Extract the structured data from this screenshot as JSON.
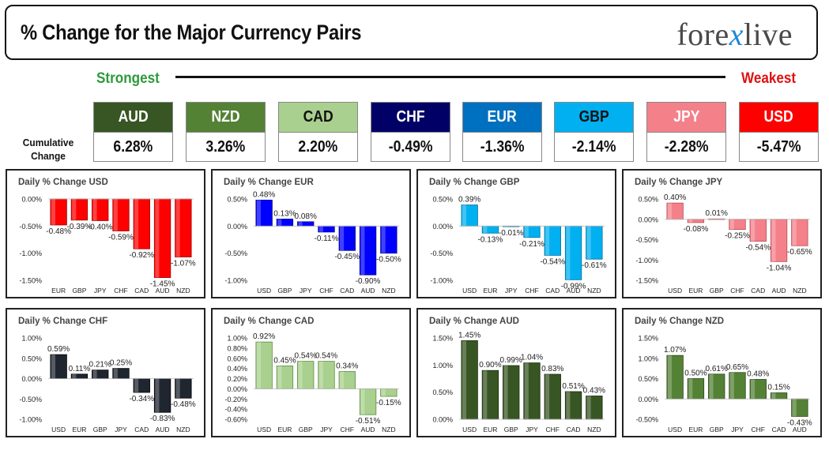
{
  "header": {
    "title": "% Change for the Major Currency Pairs",
    "logo_left": "fore",
    "logo_x": "x",
    "logo_right": "live"
  },
  "scale": {
    "strongest_label": "Strongest",
    "weakest_label": "Weakest"
  },
  "cumulative": {
    "label_line1": "Cumulative",
    "label_line2": "Change",
    "items": [
      {
        "currency": "AUD",
        "value": "6.28%",
        "color": "#375623",
        "text_color": "#ffffff"
      },
      {
        "currency": "NZD",
        "value": "3.26%",
        "color": "#548235",
        "text_color": "#ffffff"
      },
      {
        "currency": "CAD",
        "value": "2.20%",
        "color": "#a9d08e",
        "text_color": "#111111"
      },
      {
        "currency": "CHF",
        "value": "-0.49%",
        "color": "#000066",
        "text_color": "#ffffff"
      },
      {
        "currency": "EUR",
        "value": "-1.36%",
        "color": "#0070c0",
        "text_color": "#ffffff"
      },
      {
        "currency": "GBP",
        "value": "-2.14%",
        "color": "#00b0f0",
        "text_color": "#111111"
      },
      {
        "currency": "JPY",
        "value": "-2.28%",
        "color": "#f4808a",
        "text_color": "#ffffff"
      },
      {
        "currency": "USD",
        "value": "-5.47%",
        "color": "#ff0000",
        "text_color": "#ffffff"
      }
    ]
  },
  "chart_data": [
    {
      "type": "bar",
      "title": "Daily % Change USD",
      "color": "#ff0000",
      "dark": "#a00000",
      "categories": [
        "EUR",
        "GBP",
        "JPY",
        "CHF",
        "CAD",
        "AUD",
        "NZD"
      ],
      "values": [
        -0.48,
        -0.39,
        -0.4,
        -0.59,
        -0.92,
        -1.45,
        -1.07
      ],
      "labels": [
        "-0.48%",
        "-0.39%",
        "-0.40%",
        "-0.59%",
        "-0.92%",
        "-1.45%",
        "-1.07%"
      ],
      "ylim": [
        -1.5,
        0.0
      ],
      "yticks": [
        0.0,
        -0.5,
        -1.0,
        -1.5
      ],
      "ytick_labels": [
        "0.00%",
        "-0.50%",
        "-1.00%",
        "-1.50%"
      ]
    },
    {
      "type": "bar",
      "title": "Daily % Change EUR",
      "color": "#0000ff",
      "dark": "#00008a",
      "categories": [
        "USD",
        "GBP",
        "JPY",
        "CHF",
        "CAD",
        "AUD",
        "NZD"
      ],
      "values": [
        0.48,
        0.13,
        0.08,
        -0.11,
        -0.45,
        -0.9,
        -0.5
      ],
      "labels": [
        "0.48%",
        "0.13%",
        "0.08%",
        "-0.11%",
        "-0.45%",
        "-0.90%",
        "-0.50%"
      ],
      "ylim": [
        -1.0,
        0.5
      ],
      "yticks": [
        0.5,
        0.0,
        -0.5,
        -1.0
      ],
      "ytick_labels": [
        "0.50%",
        "0.00%",
        "-0.50%",
        "-1.00%"
      ]
    },
    {
      "type": "bar",
      "title": "Daily % Change GBP",
      "color": "#00b0f0",
      "dark": "#006f9a",
      "categories": [
        "USD",
        "EUR",
        "JPY",
        "CHF",
        "CAD",
        "AUD",
        "NZD"
      ],
      "values": [
        0.39,
        -0.13,
        -0.01,
        -0.21,
        -0.54,
        -0.99,
        -0.61
      ],
      "labels": [
        "0.39%",
        "-0.13%",
        "-0.01%",
        "-0.21%",
        "-0.54%",
        "-0.99%",
        "-0.61%"
      ],
      "ylim": [
        -1.0,
        0.5
      ],
      "yticks": [
        0.5,
        0.0,
        -0.5,
        -1.0
      ],
      "ytick_labels": [
        "0.50%",
        "0.00%",
        "-0.50%",
        "-1.00%"
      ]
    },
    {
      "type": "bar",
      "title": "Daily % Change JPY",
      "color": "#f4808a",
      "dark": "#b84b55",
      "categories": [
        "USD",
        "EUR",
        "GBP",
        "CHF",
        "CAD",
        "AUD",
        "NZD"
      ],
      "values": [
        0.4,
        -0.08,
        0.01,
        -0.25,
        -0.54,
        -1.04,
        -0.65
      ],
      "labels": [
        "0.40%",
        "-0.08%",
        "0.01%",
        "-0.25%",
        "-0.54%",
        "-1.04%",
        "-0.65%"
      ],
      "ylim": [
        -1.5,
        0.5
      ],
      "yticks": [
        0.5,
        0.0,
        -0.5,
        -1.0,
        -1.5
      ],
      "ytick_labels": [
        "0.50%",
        "0.00%",
        "-0.50%",
        "-1.00%",
        "-1.50%"
      ]
    },
    {
      "type": "bar",
      "title": "Daily % Change CHF",
      "color": "#1f2630",
      "dark": "#000000",
      "categories": [
        "USD",
        "EUR",
        "GBP",
        "JPY",
        "CAD",
        "AUD",
        "NZD"
      ],
      "values": [
        0.59,
        0.11,
        0.21,
        0.25,
        -0.34,
        -0.83,
        -0.48
      ],
      "labels": [
        "0.59%",
        "0.11%",
        "0.21%",
        "0.25%",
        "-0.34%",
        "-0.83%",
        "-0.48%"
      ],
      "ylim": [
        -1.0,
        1.0
      ],
      "yticks": [
        1.0,
        0.5,
        0.0,
        -0.5,
        -1.0
      ],
      "ytick_labels": [
        "1.00%",
        "0.50%",
        "0.00%",
        "-0.50%",
        "-1.00%"
      ]
    },
    {
      "type": "bar",
      "title": "Daily % Change CAD",
      "color": "#a9d08e",
      "dark": "#5e8a42",
      "categories": [
        "USD",
        "EUR",
        "GBP",
        "JPY",
        "CHF",
        "AUD",
        "NZD"
      ],
      "values": [
        0.92,
        0.45,
        0.54,
        0.54,
        0.34,
        -0.51,
        -0.15
      ],
      "labels": [
        "0.92%",
        "0.45%",
        "0.54%",
        "0.54%",
        "0.34%",
        "-0.51%",
        "-0.15%"
      ],
      "ylim": [
        -0.6,
        1.0
      ],
      "yticks": [
        1.0,
        0.8,
        0.6,
        0.4,
        0.2,
        0.0,
        -0.2,
        -0.4,
        -0.6
      ],
      "ytick_labels": [
        "1.00%",
        "0.80%",
        "0.60%",
        "0.40%",
        "0.20%",
        "0.00%",
        "-0.20%",
        "-0.40%",
        "-0.60%"
      ]
    },
    {
      "type": "bar",
      "title": "Daily % Change AUD",
      "color": "#375623",
      "dark": "#1b2b10",
      "categories": [
        "USD",
        "EUR",
        "GBP",
        "JPY",
        "CHF",
        "CAD",
        "NZD"
      ],
      "values": [
        1.45,
        0.9,
        0.99,
        1.04,
        0.83,
        0.51,
        0.43
      ],
      "labels": [
        "1.45%",
        "0.90%",
        "0.99%",
        "1.04%",
        "0.83%",
        "0.51%",
        "0.43%"
      ],
      "ylim": [
        0.0,
        1.5
      ],
      "yticks": [
        1.5,
        1.0,
        0.5,
        0.0
      ],
      "ytick_labels": [
        "1.50%",
        "1.00%",
        "0.50%",
        "0.00%"
      ]
    },
    {
      "type": "bar",
      "title": "Daily % Change NZD",
      "color": "#548235",
      "dark": "#2a4418",
      "categories": [
        "USD",
        "EUR",
        "GBP",
        "JPY",
        "CHF",
        "CAD",
        "AUD"
      ],
      "values": [
        1.07,
        0.5,
        0.61,
        0.65,
        0.48,
        0.15,
        -0.43
      ],
      "labels": [
        "1.07%",
        "0.50%",
        "0.61%",
        "0.65%",
        "0.48%",
        "0.15%",
        "-0.43%"
      ],
      "ylim": [
        -0.5,
        1.5
      ],
      "yticks": [
        1.5,
        1.0,
        0.5,
        0.0,
        -0.5
      ],
      "ytick_labels": [
        "1.50%",
        "1.00%",
        "0.50%",
        "0.00%",
        "-0.50%"
      ]
    }
  ]
}
